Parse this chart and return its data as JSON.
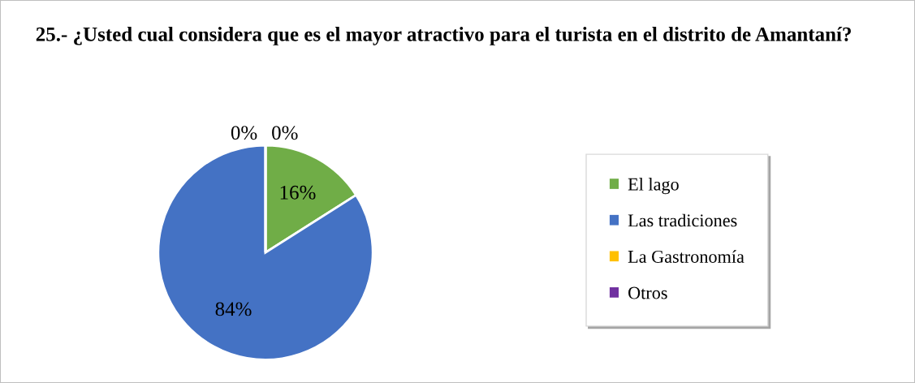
{
  "chart_data": {
    "type": "pie",
    "title": "25.- ¿Usted cual considera que es el mayor atractivo para el turista en el distrito de Amantaní?",
    "categories": [
      "El lago",
      "Las tradiciones",
      "La Gastronomía",
      "Otros"
    ],
    "values": [
      16,
      84,
      0,
      0
    ],
    "colors": [
      "#70ad47",
      "#4472c4",
      "#ffc000",
      "#7030a0"
    ],
    "value_labels": [
      "16%",
      "84%",
      "0%",
      "0%"
    ],
    "legend": "right"
  }
}
